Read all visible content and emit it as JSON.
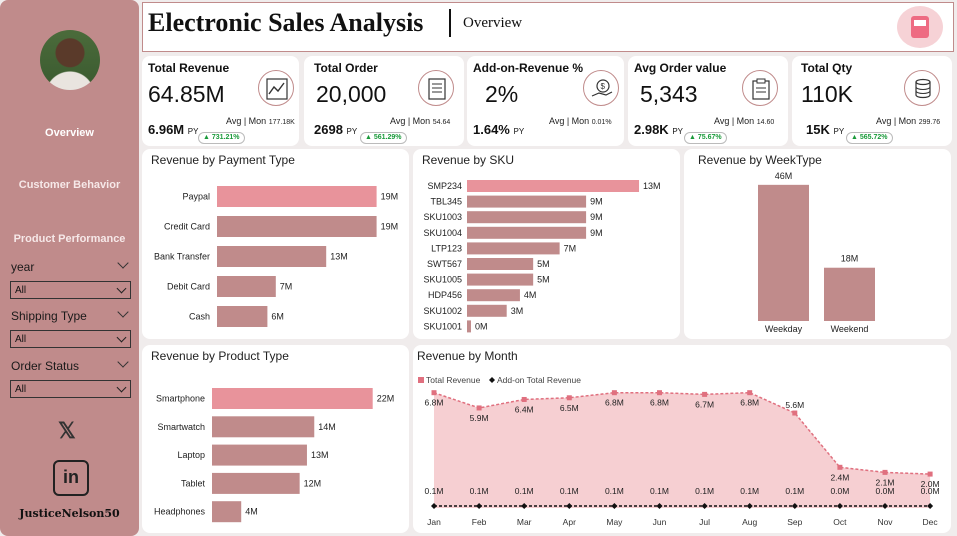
{
  "sidebar": {
    "nav": [
      "Overview",
      "Customer Behavior",
      "Product Performance"
    ],
    "slicers": [
      {
        "label": "year",
        "value": "All"
      },
      {
        "label": "Shipping Type",
        "value": "All"
      },
      {
        "label": "Order Status",
        "value": "All"
      }
    ],
    "x_glyph": "𝕏",
    "linkedin_glyph": "in",
    "handle": "JusticeNelson50"
  },
  "header": {
    "title": "Electronic Sales Analysis",
    "subtitle": "Overview"
  },
  "kpis": [
    {
      "title": "Total Revenue",
      "value": "64.85M",
      "py_value": "6.96M",
      "py_label": "PY",
      "avg_label": "Avg | Mon",
      "avg_value": "177.18K",
      "change": "▲ 731.21%",
      "icon": "line-chart-icon"
    },
    {
      "title": "Total Order",
      "value": "20,000",
      "py_value": "2698",
      "py_label": "PY",
      "avg_label": "Avg | Mon",
      "avg_value": "54.64",
      "change": "▲ 561.29%",
      "icon": "order-list-icon"
    },
    {
      "title": "Add-on-Revenue %",
      "value": "2%",
      "py_value": "1.64%",
      "py_label": "PY",
      "avg_label": "Avg | Mon",
      "avg_value": "0.01%",
      "change": "",
      "icon": "money-hand-icon"
    },
    {
      "title": "Avg Order value",
      "value": "5,343",
      "py_value": "2.98K",
      "py_label": "PY",
      "avg_label": "Avg | Mon",
      "avg_value": "14.60",
      "change": "▲ 75.67%",
      "icon": "clipboard-icon"
    },
    {
      "title": "Total Qty",
      "value": "110K",
      "py_value": "15K",
      "py_label": "PY",
      "avg_label": "Avg | Mon",
      "avg_value": "299.76",
      "change": "▲ 565.72%",
      "icon": "stack-icon"
    }
  ],
  "colors": {
    "bar": "#c08b8b",
    "bar_highlight": "#e8939b",
    "area": "#f6cfd2",
    "line": "#e0707f",
    "addon": "#111111"
  },
  "chart_data": [
    {
      "id": "payment",
      "type": "bar",
      "orientation": "horizontal",
      "title": "Revenue by Payment Type",
      "categories": [
        "Paypal",
        "Credit Card",
        "Bank Transfer",
        "Debit Card",
        "Cash"
      ],
      "values": [
        19,
        19,
        13,
        7,
        6
      ],
      "labels": [
        "19M",
        "19M",
        "13M",
        "7M",
        "6M"
      ],
      "max": 20
    },
    {
      "id": "sku",
      "type": "bar",
      "orientation": "horizontal",
      "title": "Revenue by SKU",
      "categories": [
        "SMP234",
        "TBL345",
        "SKU1003",
        "SKU1004",
        "LTP123",
        "SWT567",
        "SKU1005",
        "HDP456",
        "SKU1002",
        "SKU1001"
      ],
      "values": [
        13,
        9,
        9,
        9,
        7,
        5,
        5,
        4,
        3,
        0.3
      ],
      "labels": [
        "13M",
        "9M",
        "9M",
        "9M",
        "7M",
        "5M",
        "5M",
        "4M",
        "3M",
        "0M"
      ],
      "max": 13.3
    },
    {
      "id": "weektype",
      "type": "bar",
      "orientation": "vertical",
      "title": "Revenue by WeekType",
      "categories": [
        "Weekday",
        "Weekend"
      ],
      "values": [
        46,
        18
      ],
      "labels": [
        "46M",
        "18M"
      ],
      "max": 50
    },
    {
      "id": "product",
      "type": "bar",
      "orientation": "horizontal",
      "title": "Revenue by Product Type",
      "categories": [
        "Smartphone",
        "Smartwatch",
        "Laptop",
        "Tablet",
        "Headphones"
      ],
      "values": [
        22,
        14,
        13,
        12,
        4
      ],
      "labels": [
        "22M",
        "14M",
        "13M",
        "12M",
        "4M"
      ],
      "max": 23
    },
    {
      "id": "month",
      "type": "area",
      "title": "Revenue by Month",
      "legend": [
        "Total Revenue",
        "Add-on Total Revenue"
      ],
      "categories": [
        "Jan",
        "Feb",
        "Mar",
        "Apr",
        "May",
        "Jun",
        "Jul",
        "Aug",
        "Sep",
        "Oct",
        "Nov",
        "Dec"
      ],
      "series": [
        {
          "name": "Total Revenue",
          "values": [
            6.8,
            5.9,
            6.4,
            6.5,
            6.8,
            6.8,
            6.7,
            6.8,
            5.6,
            2.4,
            2.1,
            2.0
          ],
          "labels": [
            "6.8M",
            "5.9M",
            "6.4M",
            "6.5M",
            "6.8M",
            "6.8M",
            "6.7M",
            "6.8M",
            "5.6M",
            "2.4M",
            "2.1M",
            "2.0M"
          ]
        },
        {
          "name": "Add-on Total Revenue",
          "values": [
            0.1,
            0.1,
            0.1,
            0.1,
            0.1,
            0.1,
            0.1,
            0.1,
            0.1,
            0.0,
            0.0,
            0.0
          ],
          "labels": [
            "0.1M",
            "0.1M",
            "0.1M",
            "0.1M",
            "0.1M",
            "0.1M",
            "0.1M",
            "0.1M",
            "0.1M",
            "0.0M",
            "0.0M",
            "0.0M"
          ]
        }
      ],
      "ylim": [
        0,
        8
      ]
    }
  ]
}
